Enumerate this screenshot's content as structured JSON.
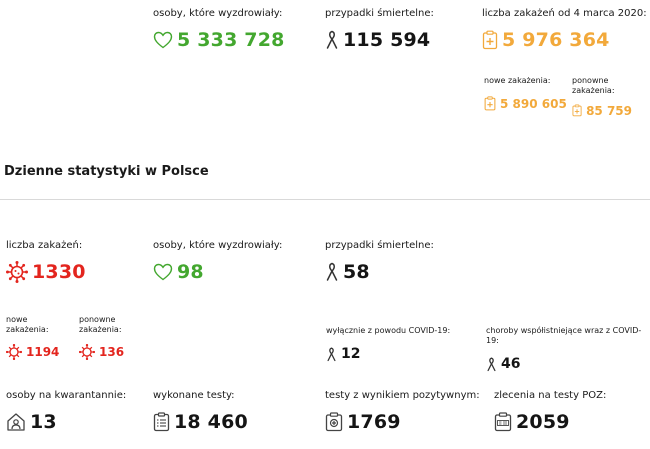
{
  "summary": {
    "recovered": {
      "label": "osoby, które wyzdrowiały:",
      "value": "5 333 728",
      "icon": "heart-icon"
    },
    "deaths": {
      "label": "przypadki śmiertelne:",
      "value": "115 594",
      "icon": "ribbon-icon"
    },
    "infections": {
      "label": "liczba zakażeń od 4 marca 2020:",
      "value": "5 976 364",
      "icon": "case-file-icon",
      "new_label": "nowe zakażenia:",
      "new_value": "5 890 605",
      "re_label": "ponowne zakażenia:",
      "re_value": "85 759"
    }
  },
  "daily": {
    "title": "Dzienne statystyki w Polsce",
    "infections": {
      "label": "liczba zakażeń:",
      "value": "1330",
      "icon": "virus-icon",
      "new_label": "nowe zakażenia:",
      "new_value": "1194",
      "re_label": "ponowne zakażenia:",
      "re_value": "136"
    },
    "recovered": {
      "label": "osoby, które wyzdrowiały:",
      "value": "98",
      "icon": "heart-icon"
    },
    "deaths": {
      "label": "przypadki śmiertelne:",
      "value": "58",
      "icon": "ribbon-icon",
      "covid_only_label": "wyłącznie z powodu COVID-19:",
      "covid_only_value": "12",
      "comorbid_label": "choroby współistniejące wraz z COVID-19:",
      "comorbid_value": "46"
    },
    "quarantine": {
      "label": "osoby na kwarantannie:",
      "value": "13",
      "icon": "house-person-icon"
    },
    "tests": {
      "label": "wykonane testy:",
      "value": "18 460",
      "icon": "clipboard-icon"
    },
    "positive_tests": {
      "label": "testy z wynikiem pozytywnym:",
      "value": "1769",
      "icon": "test-positive-icon"
    },
    "poz_orders": {
      "label": "zlecenia na testy POZ:",
      "value": "2059",
      "icon": "poz-icon"
    }
  },
  "colors": {
    "green": "#43a72f",
    "orange": "#f2a93b",
    "red": "#e3251e",
    "dark": "#151515",
    "divider": "#d9d9d9"
  }
}
